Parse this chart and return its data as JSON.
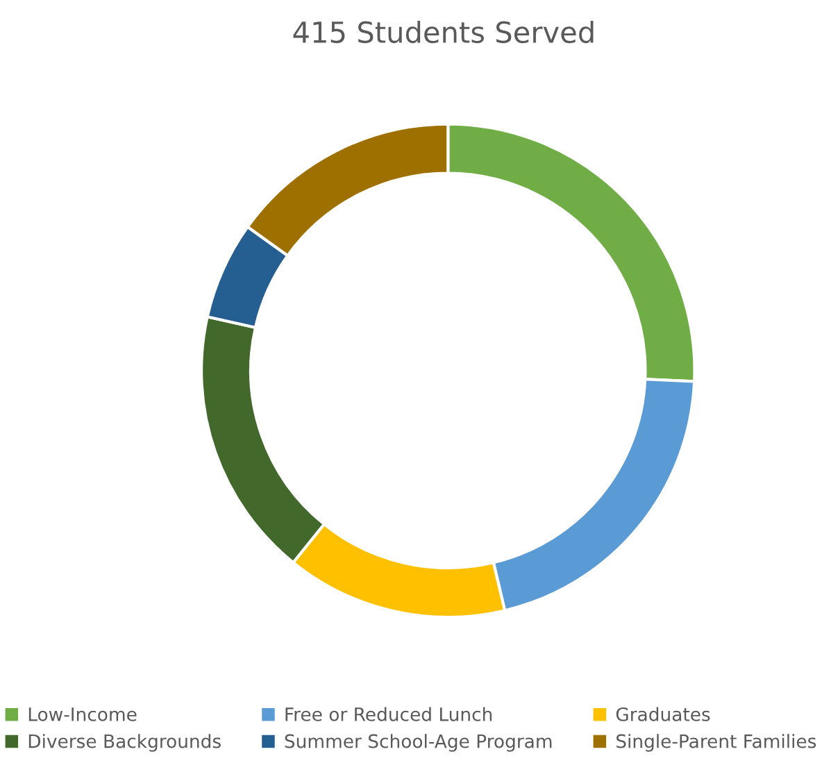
{
  "chart_data": {
    "type": "donut",
    "title": "415 Students Served",
    "categories": [
      "Low-Income",
      "Free or Reduced Lunch",
      "Graduates",
      "Diverse Backgrounds",
      "Summer School-Age Program",
      "Single-Parent Families"
    ],
    "values": [
      25.7,
      20.6,
      14.5,
      17.7,
      6.4,
      15.1
    ],
    "colors": [
      "#70ad47",
      "#5b9bd5",
      "#ffc000",
      "#43682b",
      "#255e91",
      "#9e7000"
    ],
    "legend": "bottom"
  }
}
